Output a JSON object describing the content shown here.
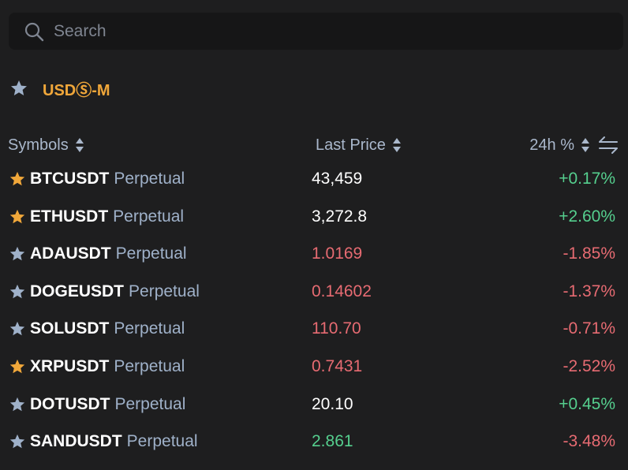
{
  "search": {
    "placeholder": "Search"
  },
  "section": {
    "label": "USDⓈ-M"
  },
  "columns": {
    "symbols": "Symbols",
    "last_price": "Last Price",
    "change": "24h %"
  },
  "rows": [
    {
      "symbol": "BTCUSDT",
      "type": "Perpetual",
      "price": "43,459",
      "change": "+0.17%",
      "favorite": true,
      "price_color": "white",
      "change_color": "green"
    },
    {
      "symbol": "ETHUSDT",
      "type": "Perpetual",
      "price": "3,272.8",
      "change": "+2.60%",
      "favorite": true,
      "price_color": "white",
      "change_color": "green"
    },
    {
      "symbol": "ADAUSDT",
      "type": "Perpetual",
      "price": "1.0169",
      "change": "-1.85%",
      "favorite": false,
      "price_color": "red",
      "change_color": "red"
    },
    {
      "symbol": "DOGEUSDT",
      "type": "Perpetual",
      "price": "0.14602",
      "change": "-1.37%",
      "favorite": false,
      "price_color": "red",
      "change_color": "red"
    },
    {
      "symbol": "SOLUSDT",
      "type": "Perpetual",
      "price": "110.70",
      "change": "-0.71%",
      "favorite": false,
      "price_color": "red",
      "change_color": "red"
    },
    {
      "symbol": "XRPUSDT",
      "type": "Perpetual",
      "price": "0.7431",
      "change": "-2.52%",
      "favorite": true,
      "price_color": "red",
      "change_color": "red"
    },
    {
      "symbol": "DOTUSDT",
      "type": "Perpetual",
      "price": "20.10",
      "change": "+0.45%",
      "favorite": false,
      "price_color": "white",
      "change_color": "green"
    },
    {
      "symbol": "SANDUSDT",
      "type": "Perpetual",
      "price": "2.861",
      "change": "-3.48%",
      "favorite": false,
      "price_color": "green",
      "change_color": "red"
    }
  ],
  "colors": {
    "favorite_star": "#f0a73a",
    "default_star": "#9fb1c9",
    "up": "#55cf8e",
    "down": "#e76b72",
    "neutral": "#ffffff"
  }
}
